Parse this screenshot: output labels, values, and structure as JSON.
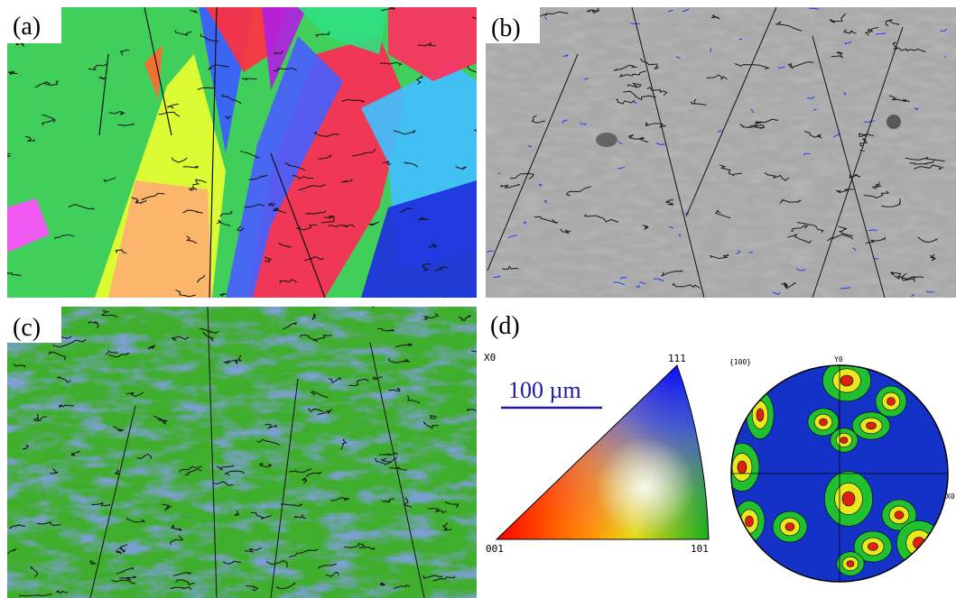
{
  "panels": {
    "a": {
      "label": "(a)"
    },
    "b": {
      "label": "(b)"
    },
    "c": {
      "label": "(c)"
    },
    "d": {
      "label": "(d)"
    }
  },
  "legend": {
    "axis_label": "X0",
    "scale_bar": "100 µm",
    "corner_111": "111",
    "corner_001": "001",
    "corner_101": "101"
  },
  "pole_figure": {
    "title": "{100}",
    "top_axis": "Y0",
    "right_axis": "X0"
  }
}
